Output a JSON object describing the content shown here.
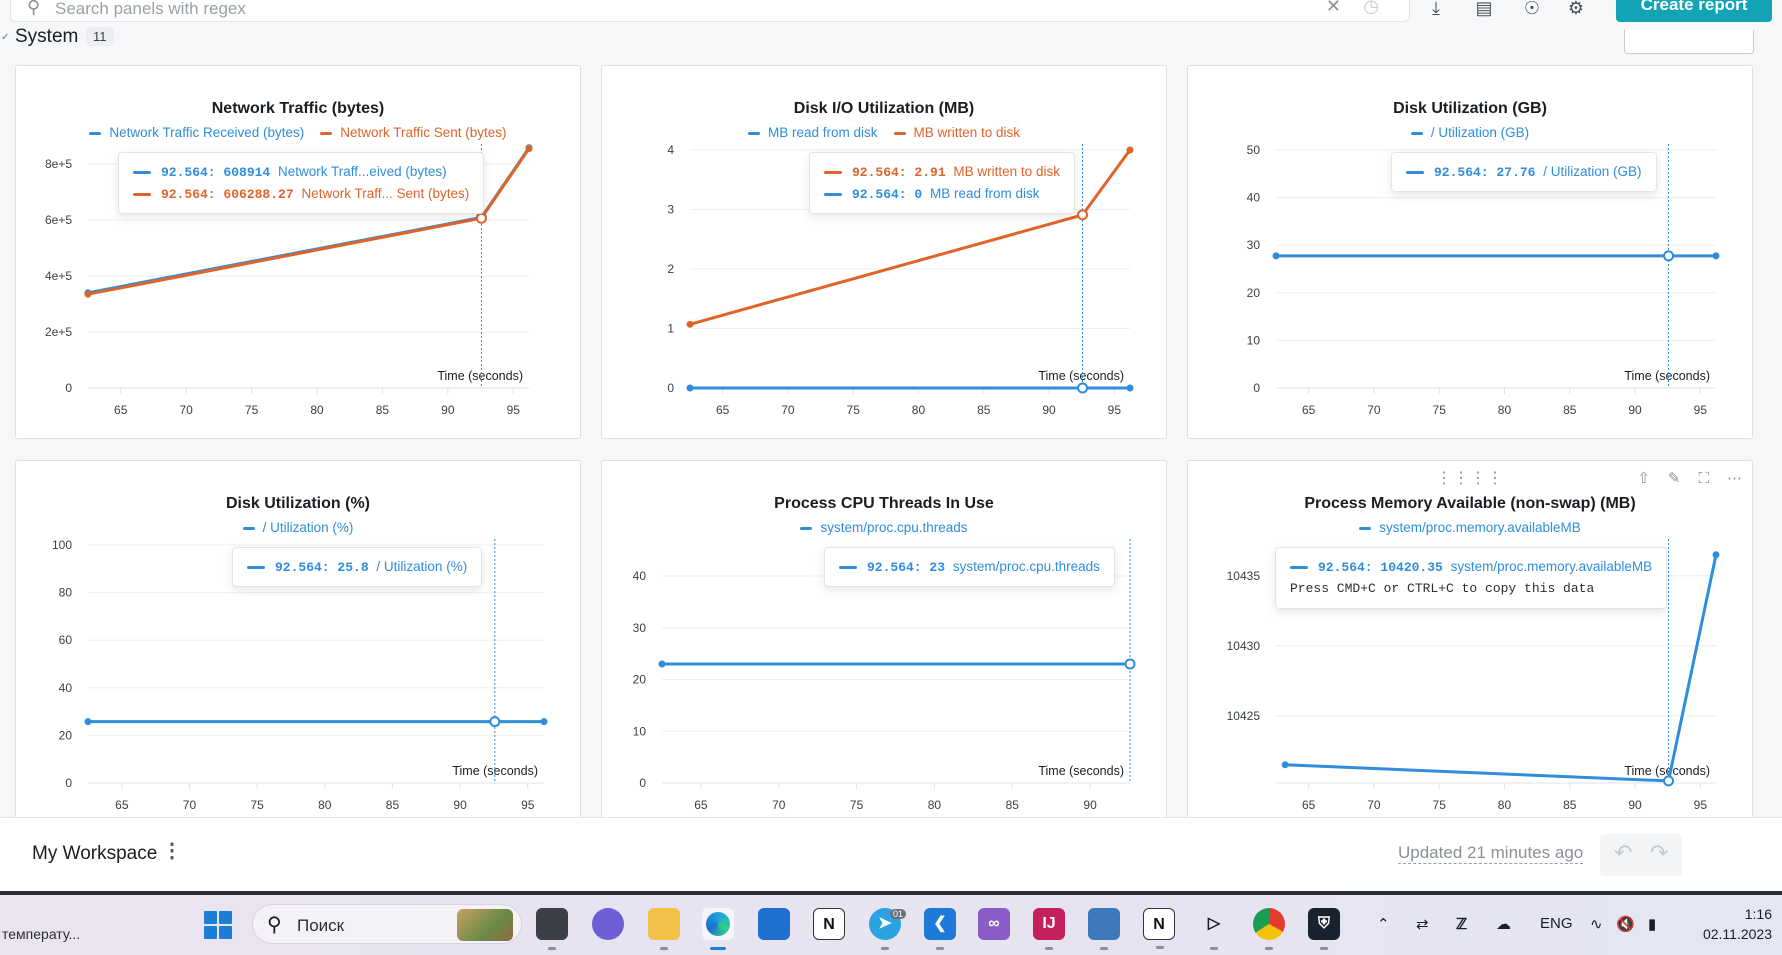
{
  "toolbar": {
    "search_placeholder": "Search panels with regex",
    "create_report_label": "Create report"
  },
  "section": {
    "title": "System",
    "count": "11"
  },
  "panels": [
    {
      "title": "Network Traffic (bytes)",
      "legend": [
        "Network Traffic Received (bytes)",
        "Network Traffic Sent (bytes)"
      ],
      "tooltip": [
        {
          "x": "92.564",
          "value": "608914",
          "label": "Network Traff...eived (bytes)"
        },
        {
          "x": "92.564",
          "value": "606288.27",
          "label": "Network Traff... Sent (bytes)"
        }
      ],
      "xlabel": "Time (seconds)"
    },
    {
      "title": "Disk I/O Utilization (MB)",
      "legend": [
        "MB read from disk",
        "MB written to disk"
      ],
      "tooltip": [
        {
          "x": "92.564",
          "value": "2.91",
          "label": "MB written to disk"
        },
        {
          "x": "92.564",
          "value": "0",
          "label": "MB read from disk"
        }
      ],
      "xlabel": "Time (seconds)"
    },
    {
      "title": "Disk Utilization (GB)",
      "legend": [
        "/ Utilization (GB)"
      ],
      "tooltip": [
        {
          "x": "92.564",
          "value": "27.76",
          "label": "/ Utilization (GB)"
        }
      ],
      "xlabel": "Time (seconds)"
    },
    {
      "title": "Disk Utilization (%)",
      "legend": [
        "/ Utilization (%)"
      ],
      "tooltip": [
        {
          "x": "92.564",
          "value": "25.8",
          "label": "/ Utilization (%)"
        }
      ],
      "xlabel": "Time (seconds)"
    },
    {
      "title": "Process CPU Threads In Use",
      "legend": [
        "system/proc.cpu.threads"
      ],
      "tooltip": [
        {
          "x": "92.564",
          "value": "23",
          "label": "system/proc.cpu.threads"
        }
      ],
      "xlabel": "Time (seconds)"
    },
    {
      "title": "Process Memory Available (non-swap) (MB)",
      "legend": [
        "system/proc.memory.availableMB"
      ],
      "tooltip": [
        {
          "x": "92.564",
          "value": "10420.35",
          "label": "system/proc.memory.availableMB"
        }
      ],
      "tooltip_note": "Press CMD+C or CTRL+C to copy this data",
      "xlabel": "Time (seconds)"
    }
  ],
  "colors": {
    "blue": "#2f8ddb",
    "orange": "#e0632a",
    "accent": "#13a3b7"
  },
  "chart_data": [
    {
      "type": "line",
      "title": "Network Traffic (bytes)",
      "xlabel": "Time (seconds)",
      "xlim": [
        62.5,
        96.2
      ],
      "ylim": [
        0,
        850000
      ],
      "xticks": [
        65,
        70,
        75,
        80,
        85,
        90,
        95
      ],
      "yticks": [
        0,
        200000,
        400000,
        600000,
        800000
      ],
      "ytick_labels": [
        "0",
        "2e+5",
        "4e+5",
        "6e+5",
        "8e+5"
      ],
      "hover_x": 92.564,
      "series": [
        {
          "name": "Network Traffic Received (bytes)",
          "color": "#2f8ddb",
          "points": [
            [
              62.5,
              340000
            ],
            [
              92.564,
              608914
            ],
            [
              96.2,
              858000
            ]
          ]
        },
        {
          "name": "Network Traffic Sent (bytes)",
          "color": "#e0632a",
          "points": [
            [
              62.5,
              335000
            ],
            [
              92.564,
              606288.27
            ],
            [
              96.2,
              855000
            ]
          ]
        }
      ]
    },
    {
      "type": "line",
      "title": "Disk I/O Utilization (MB)",
      "xlabel": "Time (seconds)",
      "xlim": [
        62.5,
        96.2
      ],
      "ylim": [
        0,
        4
      ],
      "xticks": [
        65,
        70,
        75,
        80,
        85,
        90,
        95
      ],
      "yticks": [
        0,
        1,
        2,
        3,
        4
      ],
      "ytick_labels": [
        "0",
        "1",
        "2",
        "3",
        "4"
      ],
      "hover_x": 92.564,
      "series": [
        {
          "name": "MB read from disk",
          "color": "#2f8ddb",
          "points": [
            [
              62.5,
              0
            ],
            [
              92.564,
              0
            ],
            [
              96.2,
              0
            ]
          ]
        },
        {
          "name": "MB written to disk",
          "color": "#e0632a",
          "points": [
            [
              62.5,
              1.07
            ],
            [
              92.564,
              2.91
            ],
            [
              96.2,
              4.0
            ]
          ]
        }
      ]
    },
    {
      "type": "line",
      "title": "Disk Utilization (GB)",
      "xlabel": "Time (seconds)",
      "xlim": [
        62.5,
        96.2
      ],
      "ylim": [
        0,
        50
      ],
      "xticks": [
        65,
        70,
        75,
        80,
        85,
        90,
        95
      ],
      "yticks": [
        0,
        10,
        20,
        30,
        40,
        50
      ],
      "ytick_labels": [
        "0",
        "10",
        "20",
        "30",
        "40",
        "50"
      ],
      "hover_x": 92.564,
      "series": [
        {
          "name": "/ Utilization (GB)",
          "color": "#2f8ddb",
          "points": [
            [
              62.5,
              27.76
            ],
            [
              92.564,
              27.76
            ],
            [
              96.2,
              27.76
            ]
          ]
        }
      ]
    },
    {
      "type": "line",
      "title": "Disk Utilization (%)",
      "xlabel": "Time (seconds)",
      "xlim": [
        62.5,
        96.2
      ],
      "ylim": [
        0,
        100
      ],
      "xticks": [
        65,
        70,
        75,
        80,
        85,
        90,
        95
      ],
      "yticks": [
        0,
        20,
        40,
        60,
        80,
        100
      ],
      "ytick_labels": [
        "0",
        "20",
        "40",
        "60",
        "80",
        "100"
      ],
      "hover_x": 92.564,
      "series": [
        {
          "name": "/ Utilization (%)",
          "color": "#2f8ddb",
          "points": [
            [
              62.5,
              25.8
            ],
            [
              92.564,
              25.8
            ],
            [
              96.2,
              25.8
            ]
          ]
        }
      ]
    },
    {
      "type": "line",
      "title": "Process CPU Threads In Use",
      "xlabel": "Time (seconds)",
      "xlim": [
        62.5,
        92.564
      ],
      "ylim": [
        0,
        46
      ],
      "xticks": [
        65,
        70,
        75,
        80,
        85,
        90
      ],
      "yticks": [
        0,
        10,
        20,
        30,
        40
      ],
      "ytick_labels": [
        "0",
        "10",
        "20",
        "30",
        "40"
      ],
      "hover_x": 92.564,
      "series": [
        {
          "name": "system/proc.cpu.threads",
          "color": "#2f8ddb",
          "points": [
            [
              62.5,
              23
            ],
            [
              92.564,
              23
            ]
          ]
        }
      ]
    },
    {
      "type": "line",
      "title": "Process Memory Available (non-swap) (MB)",
      "xlabel": "Time (seconds)",
      "xlim": [
        62.5,
        96.2
      ],
      "ylim": [
        10420.2,
        10437.2
      ],
      "xticks": [
        65,
        70,
        75,
        80,
        85,
        90,
        95
      ],
      "yticks": [
        10425,
        10430,
        10435
      ],
      "ytick_labels": [
        "10425",
        "10430",
        "10435"
      ],
      "hover_x": 92.564,
      "series": [
        {
          "name": "system/proc.memory.availableMB",
          "color": "#2f8ddb",
          "points": [
            [
              63.2,
              10421.5
            ],
            [
              92.564,
              10420.35
            ],
            [
              96.2,
              10436.5
            ]
          ]
        }
      ]
    }
  ],
  "workspace": {
    "name": "My Workspace",
    "updated": "Updated 21 minutes ago"
  },
  "taskbar": {
    "weather": "температу...",
    "search_label": "Поиск",
    "language": "ENG",
    "time": "1:16",
    "date": "02.11.2023",
    "telegram_badge": "01"
  }
}
